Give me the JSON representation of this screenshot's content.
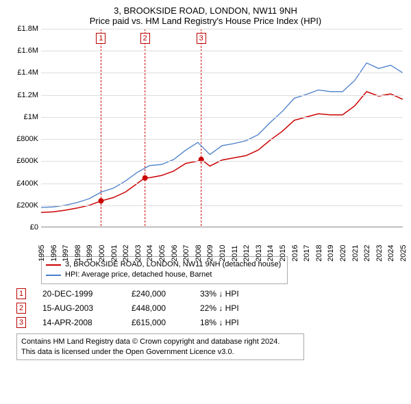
{
  "title": {
    "line1": "3, BROOKSIDE ROAD, LONDON, NW11 9NH",
    "line2": "Price paid vs. HM Land Registry's House Price Index (HPI)"
  },
  "chart": {
    "type": "line",
    "background_color": "#ffffff",
    "grid_color": "#dddddd",
    "axis_color": "#888888",
    "label_fontsize": 11,
    "ylim": [
      0,
      1800000
    ],
    "ytick_step": 200000,
    "ytick_labels": [
      "£0",
      "£200K",
      "£400K",
      "£600K",
      "£800K",
      "£1M",
      "£1.2M",
      "£1.4M",
      "£1.6M",
      "£1.8M"
    ],
    "xlim": [
      1995,
      2025
    ],
    "xtick_step": 1,
    "xtick_labels": [
      "1995",
      "1996",
      "1997",
      "1998",
      "1999",
      "2000",
      "2001",
      "2002",
      "2003",
      "2004",
      "2005",
      "2006",
      "2007",
      "2008",
      "2009",
      "2010",
      "2011",
      "2012",
      "2013",
      "2014",
      "2015",
      "2016",
      "2017",
      "2018",
      "2019",
      "2020",
      "2021",
      "2022",
      "2023",
      "2024",
      "2025"
    ],
    "series": [
      {
        "id": "price_paid",
        "label": "3, BROOKSIDE ROAD, LONDON, NW11 9NH (detached house)",
        "color": "#cc0000",
        "line_width": 1.5,
        "x": [
          1995,
          1996,
          1997,
          1998,
          1999,
          2000,
          2001,
          2002,
          2003,
          2003.6,
          2004,
          2005,
          2006,
          2007,
          2008,
          2008.3,
          2009,
          2010,
          2011,
          2012,
          2013,
          2014,
          2015,
          2016,
          2017,
          2018,
          2019,
          2020,
          2021,
          2022,
          2023,
          2024,
          2025
        ],
        "y": [
          135000,
          140000,
          155000,
          175000,
          200000,
          240000,
          270000,
          320000,
          400000,
          448000,
          450000,
          470000,
          510000,
          580000,
          600000,
          615000,
          555000,
          610000,
          630000,
          650000,
          700000,
          790000,
          870000,
          970000,
          1000000,
          1030000,
          1020000,
          1020000,
          1100000,
          1230000,
          1190000,
          1210000,
          1160000
        ]
      },
      {
        "id": "hpi",
        "label": "HPI: Average price, detached house, Barnet",
        "color": "#4a7ecb",
        "line_width": 1.3,
        "x": [
          1995,
          1996,
          1997,
          1998,
          1999,
          2000,
          2001,
          2002,
          2003,
          2004,
          2005,
          2006,
          2007,
          2008,
          2009,
          2010,
          2011,
          2012,
          2013,
          2014,
          2015,
          2016,
          2017,
          2018,
          2019,
          2020,
          2021,
          2022,
          2023,
          2024,
          2025
        ],
        "y": [
          180000,
          185000,
          200000,
          225000,
          260000,
          320000,
          355000,
          420000,
          500000,
          560000,
          570000,
          615000,
          700000,
          770000,
          660000,
          740000,
          760000,
          785000,
          840000,
          950000,
          1050000,
          1170000,
          1205000,
          1245000,
          1230000,
          1230000,
          1330000,
          1490000,
          1440000,
          1470000,
          1400000
        ]
      }
    ],
    "transaction_markers": [
      {
        "n": "1",
        "x": 1999.97,
        "y": 240000
      },
      {
        "n": "2",
        "x": 2003.62,
        "y": 448000
      },
      {
        "n": "3",
        "x": 2008.28,
        "y": 615000
      }
    ],
    "vline_color": "#cc0000",
    "marker_fill": "#cc0000",
    "marker_radius": 4
  },
  "legend": {
    "items": [
      {
        "color": "#cc0000",
        "text": "3, BROOKSIDE ROAD, LONDON, NW11 9NH (detached house)"
      },
      {
        "color": "#4a7ecb",
        "text": "HPI: Average price, detached house, Barnet"
      }
    ]
  },
  "transactions": [
    {
      "n": "1",
      "date": "20-DEC-1999",
      "price": "£240,000",
      "diff": "33% ↓ HPI"
    },
    {
      "n": "2",
      "date": "15-AUG-2003",
      "price": "£448,000",
      "diff": "22% ↓ HPI"
    },
    {
      "n": "3",
      "date": "14-APR-2008",
      "price": "£615,000",
      "diff": "18% ↓ HPI"
    }
  ],
  "footnote": {
    "line1": "Contains HM Land Registry data © Crown copyright and database right 2024.",
    "line2": "This data is licensed under the Open Government Licence v3.0."
  }
}
